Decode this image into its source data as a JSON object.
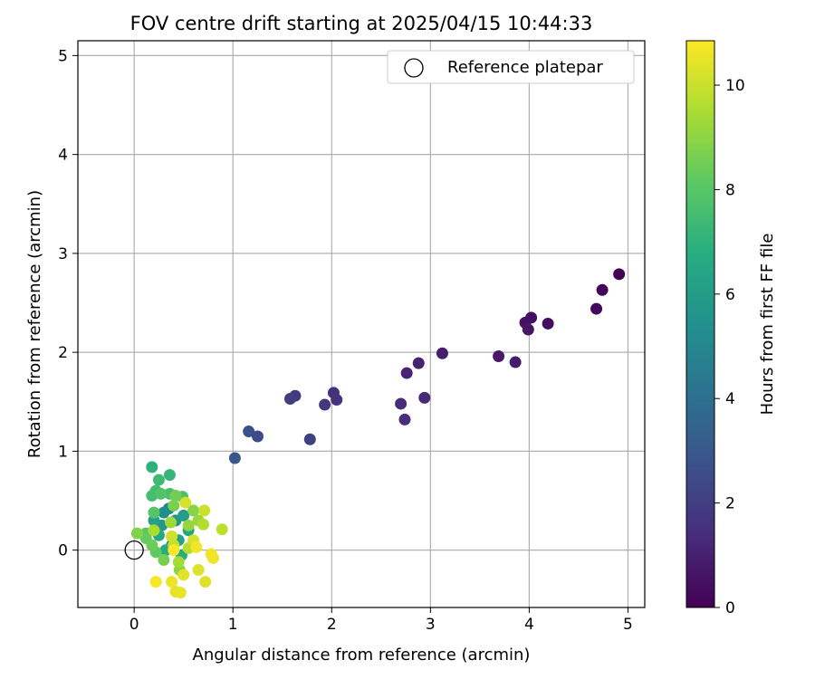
{
  "chart_data": {
    "type": "scatter",
    "title": "FOV centre drift starting at 2025/04/15 10:44:33",
    "xlabel": "Angular distance from reference (arcmin)",
    "ylabel": "Rotation from reference (arcmin)",
    "xlim": [
      -0.57,
      5.17
    ],
    "ylim": [
      -0.58,
      5.15
    ],
    "x_ticks": [
      "0",
      "1",
      "2",
      "3",
      "4",
      "5"
    ],
    "y_ticks": [
      "0",
      "1",
      "2",
      "3",
      "4",
      "5"
    ],
    "grid": true,
    "legend": {
      "position": "top-right",
      "entries": [
        "Reference platepar"
      ]
    },
    "reference_point": {
      "x": 0,
      "y": 0
    },
    "colorbar": {
      "label": "Hours from first FF file",
      "range": [
        0,
        10.85
      ],
      "ticks": [
        "0",
        "2",
        "4",
        "6",
        "8",
        "10"
      ],
      "colormap": "viridis"
    },
    "points": [
      {
        "x": 4.91,
        "y": 2.79,
        "c": 0.05
      },
      {
        "x": 4.74,
        "y": 2.63,
        "c": 0.15
      },
      {
        "x": 4.68,
        "y": 2.44,
        "c": 0.25
      },
      {
        "x": 4.19,
        "y": 2.29,
        "c": 0.35
      },
      {
        "x": 4.02,
        "y": 2.35,
        "c": 0.45
      },
      {
        "x": 3.96,
        "y": 2.3,
        "c": 0.55
      },
      {
        "x": 3.99,
        "y": 2.23,
        "c": 0.65
      },
      {
        "x": 3.69,
        "y": 1.96,
        "c": 0.75
      },
      {
        "x": 3.86,
        "y": 1.9,
        "c": 0.85
      },
      {
        "x": 3.12,
        "y": 1.99,
        "c": 0.95
      },
      {
        "x": 2.88,
        "y": 1.89,
        "c": 1.05
      },
      {
        "x": 2.76,
        "y": 1.79,
        "c": 1.15
      },
      {
        "x": 2.94,
        "y": 1.54,
        "c": 1.25
      },
      {
        "x": 2.7,
        "y": 1.48,
        "c": 1.35
      },
      {
        "x": 2.74,
        "y": 1.32,
        "c": 1.45
      },
      {
        "x": 2.02,
        "y": 1.59,
        "c": 1.55
      },
      {
        "x": 2.05,
        "y": 1.52,
        "c": 1.65
      },
      {
        "x": 1.93,
        "y": 1.47,
        "c": 1.75
      },
      {
        "x": 1.63,
        "y": 1.56,
        "c": 1.85
      },
      {
        "x": 1.58,
        "y": 1.53,
        "c": 1.95
      },
      {
        "x": 1.78,
        "y": 1.12,
        "c": 2.05
      },
      {
        "x": 1.25,
        "y": 1.15,
        "c": 2.5
      },
      {
        "x": 1.16,
        "y": 1.2,
        "c": 2.7
      },
      {
        "x": 1.02,
        "y": 0.93,
        "c": 3.0
      },
      {
        "x": 0.35,
        "y": 0.42,
        "c": 5.0
      },
      {
        "x": 0.3,
        "y": 0.38,
        "c": 5.4
      },
      {
        "x": 0.42,
        "y": 0.3,
        "c": 5.6
      },
      {
        "x": 0.28,
        "y": 0.25,
        "c": 5.8
      },
      {
        "x": 0.5,
        "y": 0.35,
        "c": 6.0
      },
      {
        "x": 0.2,
        "y": 0.3,
        "c": 6.2
      },
      {
        "x": 0.45,
        "y": 0.1,
        "c": 6.3
      },
      {
        "x": 0.38,
        "y": 0.05,
        "c": 6.4
      },
      {
        "x": 0.55,
        "y": 0.2,
        "c": 6.5
      },
      {
        "x": 0.25,
        "y": 0.15,
        "c": 6.6
      },
      {
        "x": 0.32,
        "y": 0.0,
        "c": 6.7
      },
      {
        "x": 0.48,
        "y": -0.05,
        "c": 6.8
      },
      {
        "x": 0.18,
        "y": 0.84,
        "c": 7.0
      },
      {
        "x": 0.36,
        "y": 0.76,
        "c": 7.2
      },
      {
        "x": 0.25,
        "y": 0.71,
        "c": 7.4
      },
      {
        "x": 0.22,
        "y": 0.6,
        "c": 7.5
      },
      {
        "x": 0.18,
        "y": 0.55,
        "c": 7.6
      },
      {
        "x": 0.36,
        "y": 0.57,
        "c": 7.7
      },
      {
        "x": 0.49,
        "y": 0.54,
        "c": 7.8
      },
      {
        "x": 0.27,
        "y": 0.57,
        "c": 7.9
      },
      {
        "x": 0.2,
        "y": 0.38,
        "c": 8.0
      },
      {
        "x": 0.12,
        "y": 0.17,
        "c": 8.1
      },
      {
        "x": 0.22,
        "y": -0.02,
        "c": 8.2
      },
      {
        "x": 0.12,
        "y": 0.12,
        "c": 8.3
      },
      {
        "x": 0.18,
        "y": 0.05,
        "c": 8.4
      },
      {
        "x": 0.42,
        "y": 0.55,
        "c": 8.5
      },
      {
        "x": 0.3,
        "y": -0.1,
        "c": 8.6
      },
      {
        "x": 0.4,
        "y": 0.45,
        "c": 8.7
      },
      {
        "x": 0.03,
        "y": 0.17,
        "c": 8.8
      },
      {
        "x": 0.6,
        "y": 0.4,
        "c": 8.9
      },
      {
        "x": 0.46,
        "y": -0.2,
        "c": 9.0
      },
      {
        "x": 0.55,
        "y": 0.25,
        "c": 9.1
      },
      {
        "x": 0.65,
        "y": 0.3,
        "c": 9.2
      },
      {
        "x": 0.37,
        "y": 0.28,
        "c": 9.3
      },
      {
        "x": 0.45,
        "y": -0.12,
        "c": 9.4
      },
      {
        "x": 0.2,
        "y": 0.2,
        "c": 9.5
      },
      {
        "x": 0.7,
        "y": 0.26,
        "c": 9.6
      },
      {
        "x": 0.55,
        "y": 0.02,
        "c": 9.7
      },
      {
        "x": 0.89,
        "y": 0.21,
        "c": 9.8
      },
      {
        "x": 0.4,
        "y": 0.05,
        "c": 9.9
      },
      {
        "x": 0.71,
        "y": 0.4,
        "c": 10.0
      },
      {
        "x": 0.38,
        "y": 0.14,
        "c": 10.1
      },
      {
        "x": 0.52,
        "y": 0.48,
        "c": 10.2
      },
      {
        "x": 0.6,
        "y": 0.1,
        "c": 10.25
      },
      {
        "x": 0.65,
        "y": -0.2,
        "c": 10.3
      },
      {
        "x": 0.72,
        "y": -0.32,
        "c": 10.35
      },
      {
        "x": 0.5,
        "y": -0.25,
        "c": 10.4
      },
      {
        "x": 0.42,
        "y": -0.42,
        "c": 10.45
      },
      {
        "x": 0.47,
        "y": -0.43,
        "c": 10.5
      },
      {
        "x": 0.38,
        "y": -0.32,
        "c": 10.55
      },
      {
        "x": 0.8,
        "y": -0.08,
        "c": 10.6
      },
      {
        "x": 0.78,
        "y": -0.04,
        "c": 10.65
      },
      {
        "x": 0.63,
        "y": 0.03,
        "c": 10.7
      },
      {
        "x": 0.22,
        "y": -0.32,
        "c": 10.75
      },
      {
        "x": 0.4,
        "y": 0.0,
        "c": 10.8
      }
    ]
  }
}
